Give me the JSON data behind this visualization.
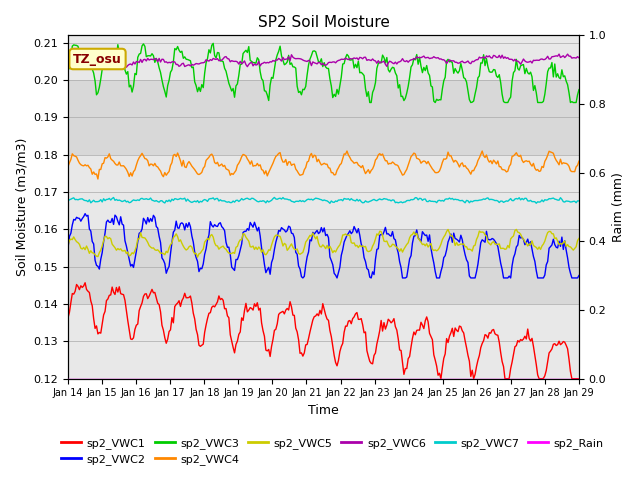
{
  "title": "SP2 Soil Moisture",
  "xlabel": "Time",
  "ylabel_left": "Soil Moisture (m3/m3)",
  "ylabel_right": "Raim (mm)",
  "ylim_left": [
    0.12,
    0.212
  ],
  "ylim_right": [
    0.0,
    1.0
  ],
  "yticks_left": [
    0.12,
    0.13,
    0.14,
    0.15,
    0.16,
    0.17,
    0.18,
    0.19,
    0.2,
    0.21
  ],
  "yticks_right": [
    0.0,
    0.2,
    0.4,
    0.6,
    0.8,
    1.0
  ],
  "xtick_labels": [
    "Jan 14",
    "Jan 15",
    "Jan 16",
    "Jan 17",
    "Jan 18",
    "Jan 19",
    "Jan 20",
    "Jan 21",
    "Jan 22",
    "Jan 23",
    "Jan 24",
    "Jan 25",
    "Jan 26",
    "Jan 27",
    "Jan 28",
    "Jan 29"
  ],
  "colors": {
    "sp2_VWC1": "#ff0000",
    "sp2_VWC2": "#0000ff",
    "sp2_VWC3": "#00cc00",
    "sp2_VWC4": "#ff8800",
    "sp2_VWC5": "#cccc00",
    "sp2_VWC6": "#aa00aa",
    "sp2_VWC7": "#00cccc",
    "sp2_Rain": "#ff00ff"
  },
  "bg_color": "#d8d8d8",
  "band_color": "#e8e8e8",
  "band_ranges": [
    [
      0.12,
      0.14
    ],
    [
      0.16,
      0.18
    ],
    [
      0.2,
      0.212
    ]
  ],
  "annotation_text": "TZ_osu",
  "linewidth": 1.0,
  "title_fontsize": 11,
  "axis_fontsize": 9,
  "tick_fontsize": 8,
  "xtick_fontsize": 7
}
